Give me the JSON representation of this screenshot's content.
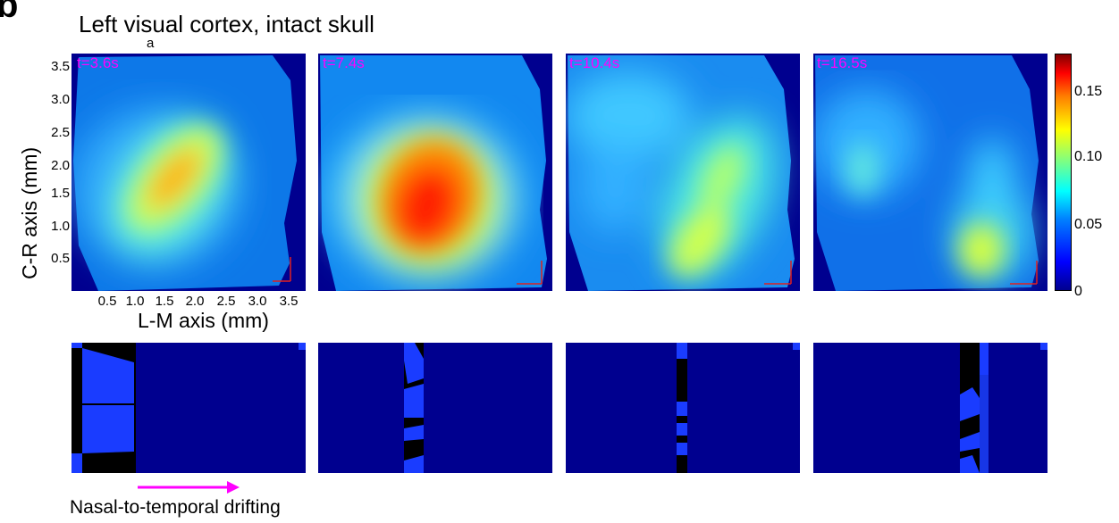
{
  "panel_letter": "b",
  "title": "Left visual cortex, intact skull",
  "title_subscript": "a",
  "axis": {
    "ylabel": "C-R axis (mm)",
    "xlabel": "L-M axis (mm)",
    "yticks": [
      "3.5",
      "3.0",
      "2.5",
      "2.0",
      "1.5",
      "1.0",
      "0.5"
    ],
    "xticks": [
      "0.5",
      "1.0",
      "1.5",
      "2.0",
      "2.5",
      "3.0",
      "3.5"
    ]
  },
  "colorbar": {
    "ticks": [
      "0.15",
      "0.10",
      "0.05",
      "0"
    ]
  },
  "frames": [
    {
      "time_label": "t=3.6s"
    },
    {
      "time_label": "t=7.4s"
    },
    {
      "time_label": "t=10.4s"
    },
    {
      "time_label": "t=16.5s"
    }
  ],
  "caption": "Nasal-to-temporal drifting",
  "chart_data": {
    "type": "heatmap",
    "title": "Left visual cortex, intact skull",
    "xlabel": "L-M axis (mm)",
    "ylabel": "C-R axis (mm)",
    "xlim": [
      0,
      3.5
    ],
    "ylim": [
      0.1,
      3.7
    ],
    "x_ticks": [
      0.5,
      1.0,
      1.5,
      2.0,
      2.5,
      3.0,
      3.5
    ],
    "y_ticks": [
      0.5,
      1.0,
      1.5,
      2.0,
      2.5,
      3.0,
      3.5
    ],
    "colorbar": {
      "min": 0,
      "max": 0.18,
      "ticks": [
        0,
        0.05,
        0.1,
        0.15
      ]
    },
    "frames": [
      "t=3.6s",
      "t=7.4s",
      "t=10.4s",
      "t=16.5s"
    ]
  }
}
